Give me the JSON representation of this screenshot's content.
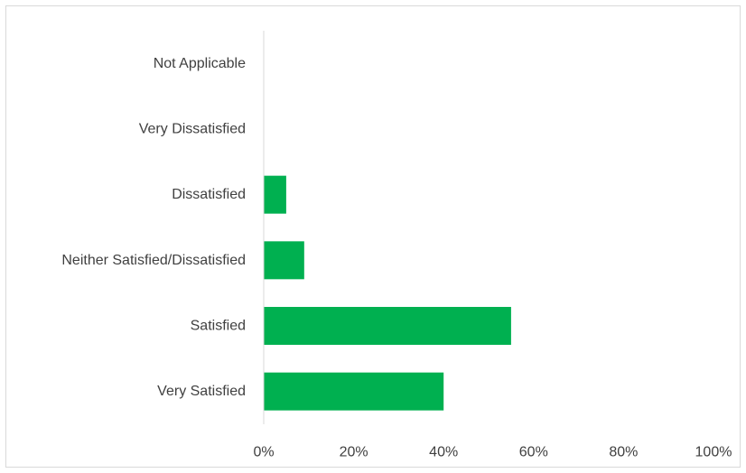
{
  "chart_data": {
    "type": "bar",
    "orientation": "horizontal",
    "categories": [
      "Not Applicable",
      "Very Dissatisfied",
      "Dissatisfied",
      "Neither Satisfied/Dissatisfied",
      "Satisfied",
      "Very Satisfied"
    ],
    "values": [
      0,
      0,
      5,
      9,
      55,
      40
    ],
    "value_unit": "%",
    "xlim": [
      0,
      100
    ],
    "x_ticks": [
      0,
      20,
      40,
      60,
      80,
      100
    ],
    "x_tick_labels": [
      "0%",
      "20%",
      "40%",
      "60%",
      "80%",
      "100%"
    ],
    "bar_color": "#00b050",
    "axis_color": "#d9d9d9",
    "grid": false,
    "legend": "none",
    "title": "",
    "xlabel": "",
    "ylabel": ""
  }
}
